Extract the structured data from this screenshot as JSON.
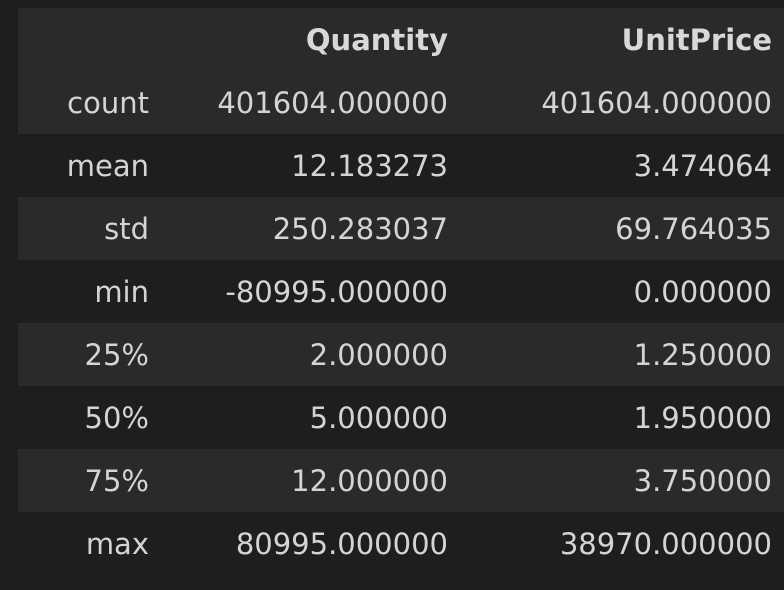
{
  "table": {
    "columns": [
      "",
      "Quantity",
      "UnitPrice"
    ],
    "rows": [
      {
        "label": "count",
        "quantity": "401604.000000",
        "unitprice": "401604.000000"
      },
      {
        "label": "mean",
        "quantity": "12.183273",
        "unitprice": "3.474064"
      },
      {
        "label": "std",
        "quantity": "250.283037",
        "unitprice": "69.764035"
      },
      {
        "label": "min",
        "quantity": "-80995.000000",
        "unitprice": "0.000000"
      },
      {
        "label": "25%",
        "quantity": "2.000000",
        "unitprice": "1.250000"
      },
      {
        "label": "50%",
        "quantity": "5.000000",
        "unitprice": "1.950000"
      },
      {
        "label": "75%",
        "quantity": "12.000000",
        "unitprice": "3.750000"
      },
      {
        "label": "max",
        "quantity": "80995.000000",
        "unitprice": "38970.000000"
      }
    ]
  },
  "colors": {
    "background": "#1e1e1e",
    "stripe": "#2a2a2a",
    "text": "#d4d4d4"
  }
}
